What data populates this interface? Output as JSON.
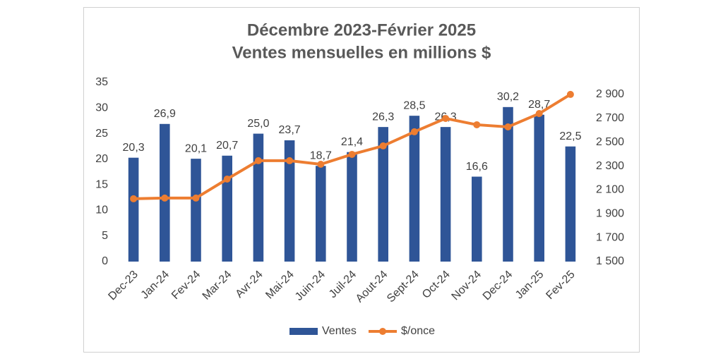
{
  "chart_data": {
    "type": "bar-line",
    "title": "Décembre 2023-Février 2025",
    "subtitle": "Ventes mensuelles en millions $",
    "categories": [
      "Dec-23",
      "Jan-24",
      "Fev-24",
      "Mar-24",
      "Avr-24",
      "Mai-24",
      "Juin-24",
      "Juil-24",
      "Aout-24",
      "Sept-24",
      "Oct-24",
      "Nov-24",
      "Dec-24",
      "Jan-25",
      "Fev-25"
    ],
    "series": [
      {
        "name": "Ventes",
        "type": "bar",
        "color": "#2f5597",
        "values": [
          20.3,
          26.9,
          20.1,
          20.7,
          25.0,
          23.7,
          18.7,
          21.4,
          26.3,
          28.5,
          26.3,
          16.6,
          30.2,
          28.7,
          22.5
        ],
        "value_labels": [
          "20,3",
          "26,9",
          "20,1",
          "20,7",
          "25,0",
          "23,7",
          "18,7",
          "21,4",
          "26,3",
          "28,5",
          "26,3",
          "16,6",
          "30,2",
          "28,7",
          "22,5"
        ]
      },
      {
        "name": "$/once",
        "type": "line",
        "axis": "y2",
        "color": "#ed7d31",
        "values": [
          2026,
          2032,
          2032,
          2191,
          2345,
          2345,
          2315,
          2398,
          2469,
          2587,
          2699,
          2646,
          2628,
          2740,
          2900
        ]
      }
    ],
    "ylim": [
      0,
      35
    ],
    "yticks": [
      0,
      5,
      10,
      15,
      20,
      25,
      30,
      35
    ],
    "y2lim": [
      1500,
      3000
    ],
    "y2ticks": [
      {
        "value": 1500,
        "label": "1 500"
      },
      {
        "value": 1700,
        "label": "1 700"
      },
      {
        "value": 1900,
        "label": "1 900"
      },
      {
        "value": 2100,
        "label": "2 100"
      },
      {
        "value": 2300,
        "label": "2 300"
      },
      {
        "value": 2500,
        "label": "2 500"
      },
      {
        "value": 2700,
        "label": "2 700"
      },
      {
        "value": 2900,
        "label": "2 900"
      }
    ],
    "legend": "bottom"
  }
}
